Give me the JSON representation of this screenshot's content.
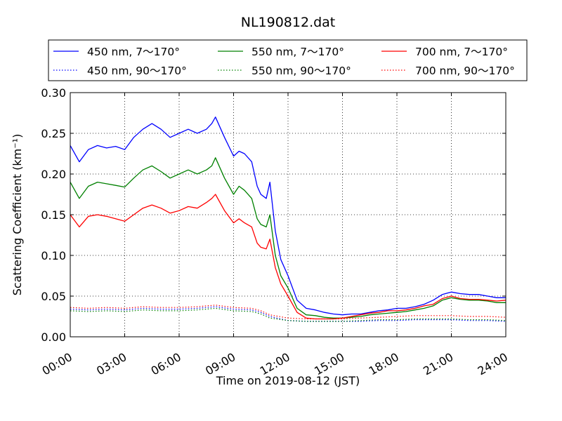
{
  "chart_data": {
    "type": "line",
    "title": "NL190812.dat",
    "xlabel": "Time on 2019-08-12 (JST)",
    "ylabel": "Scattering Coefficient (km⁻¹)",
    "xlim": [
      0,
      24
    ],
    "ylim": [
      0,
      0.3
    ],
    "x_ticks": [
      "00:00",
      "03:00",
      "06:00",
      "09:00",
      "12:00",
      "15:00",
      "18:00",
      "21:00",
      "24:00"
    ],
    "y_ticks": [
      "0.00",
      "0.05",
      "0.10",
      "0.15",
      "0.20",
      "0.25",
      "0.30"
    ],
    "grid": true,
    "legend_position": "top",
    "x_unit": "hours since 00:00",
    "series": [
      {
        "name": "450 nm, 7～170°",
        "color": "#0000ff",
        "style": "solid",
        "x": [
          0,
          0.5,
          1,
          1.5,
          2,
          2.5,
          3,
          3.5,
          4,
          4.5,
          5,
          5.5,
          6,
          6.5,
          7,
          7.5,
          7.8,
          8,
          8.5,
          9,
          9.3,
          9.6,
          10,
          10.3,
          10.5,
          10.8,
          11,
          11.3,
          11.6,
          12,
          12.5,
          13,
          13.5,
          14,
          14.5,
          15,
          15.5,
          16,
          16.5,
          17,
          17.5,
          18,
          18.5,
          19,
          19.5,
          20,
          20.5,
          21,
          21.5,
          22,
          22.5,
          23,
          23.5,
          24
        ],
        "y": [
          0.235,
          0.215,
          0.23,
          0.235,
          0.232,
          0.234,
          0.23,
          0.245,
          0.255,
          0.262,
          0.255,
          0.245,
          0.25,
          0.255,
          0.25,
          0.255,
          0.262,
          0.27,
          0.245,
          0.222,
          0.228,
          0.225,
          0.215,
          0.185,
          0.175,
          0.17,
          0.19,
          0.13,
          0.095,
          0.075,
          0.045,
          0.035,
          0.033,
          0.03,
          0.028,
          0.027,
          0.028,
          0.028,
          0.03,
          0.032,
          0.033,
          0.035,
          0.035,
          0.037,
          0.04,
          0.045,
          0.052,
          0.055,
          0.053,
          0.052,
          0.052,
          0.05,
          0.048,
          0.048
        ]
      },
      {
        "name": "450 nm, 90～170°",
        "color": "#0000ff",
        "style": "dotted",
        "x": [
          0,
          1,
          2,
          3,
          4,
          5,
          6,
          7,
          8,
          9,
          10,
          10.5,
          11,
          12,
          13,
          14,
          15,
          16,
          17,
          18,
          19,
          20,
          21,
          22,
          23,
          24
        ],
        "y": [
          0.034,
          0.033,
          0.034,
          0.033,
          0.035,
          0.034,
          0.034,
          0.035,
          0.037,
          0.034,
          0.033,
          0.03,
          0.025,
          0.02,
          0.019,
          0.019,
          0.019,
          0.019,
          0.02,
          0.02,
          0.021,
          0.021,
          0.021,
          0.02,
          0.02,
          0.019
        ]
      },
      {
        "name": "550 nm, 7～170°",
        "color": "#008000",
        "style": "solid",
        "x": [
          0,
          0.5,
          1,
          1.5,
          2,
          2.5,
          3,
          3.5,
          4,
          4.5,
          5,
          5.5,
          6,
          6.5,
          7,
          7.5,
          7.8,
          8,
          8.5,
          9,
          9.3,
          9.6,
          10,
          10.3,
          10.5,
          10.8,
          11,
          11.3,
          11.6,
          12,
          12.5,
          13,
          13.5,
          14,
          14.5,
          15,
          15.5,
          16,
          16.5,
          17,
          17.5,
          18,
          18.5,
          19,
          19.5,
          20,
          20.5,
          21,
          21.5,
          22,
          22.5,
          23,
          23.5,
          24
        ],
        "y": [
          0.19,
          0.17,
          0.185,
          0.19,
          0.188,
          0.186,
          0.184,
          0.195,
          0.205,
          0.21,
          0.203,
          0.195,
          0.2,
          0.205,
          0.2,
          0.205,
          0.21,
          0.22,
          0.195,
          0.175,
          0.185,
          0.18,
          0.17,
          0.145,
          0.138,
          0.135,
          0.15,
          0.1,
          0.075,
          0.06,
          0.035,
          0.027,
          0.026,
          0.024,
          0.023,
          0.023,
          0.024,
          0.025,
          0.027,
          0.028,
          0.029,
          0.03,
          0.031,
          0.033,
          0.035,
          0.038,
          0.045,
          0.048,
          0.046,
          0.045,
          0.045,
          0.044,
          0.042,
          0.042
        ]
      },
      {
        "name": "550 nm, 90～170°",
        "color": "#008000",
        "style": "dotted",
        "x": [
          0,
          1,
          2,
          3,
          4,
          5,
          6,
          7,
          8,
          9,
          10,
          10.5,
          11,
          12,
          13,
          14,
          15,
          16,
          17,
          18,
          19,
          20,
          21,
          22,
          23,
          24
        ],
        "y": [
          0.032,
          0.031,
          0.032,
          0.031,
          0.033,
          0.032,
          0.032,
          0.033,
          0.035,
          0.032,
          0.031,
          0.028,
          0.023,
          0.02,
          0.019,
          0.019,
          0.019,
          0.02,
          0.021,
          0.021,
          0.022,
          0.022,
          0.022,
          0.021,
          0.021,
          0.02
        ]
      },
      {
        "name": "700 nm, 7～170°",
        "color": "#ff0000",
        "style": "solid",
        "x": [
          0,
          0.5,
          1,
          1.5,
          2,
          2.5,
          3,
          3.5,
          4,
          4.5,
          5,
          5.5,
          6,
          6.5,
          7,
          7.5,
          7.8,
          8,
          8.5,
          9,
          9.3,
          9.6,
          10,
          10.3,
          10.5,
          10.8,
          11,
          11.3,
          11.6,
          12,
          12.5,
          13,
          13.5,
          14,
          14.5,
          15,
          15.5,
          16,
          16.5,
          17,
          17.5,
          18,
          18.5,
          19,
          19.5,
          20,
          20.5,
          21,
          21.5,
          22,
          22.5,
          23,
          23.5,
          24
        ],
        "y": [
          0.15,
          0.135,
          0.148,
          0.15,
          0.148,
          0.145,
          0.142,
          0.15,
          0.158,
          0.162,
          0.158,
          0.152,
          0.155,
          0.16,
          0.158,
          0.165,
          0.17,
          0.175,
          0.155,
          0.14,
          0.145,
          0.14,
          0.135,
          0.115,
          0.11,
          0.108,
          0.12,
          0.085,
          0.065,
          0.05,
          0.03,
          0.023,
          0.022,
          0.022,
          0.022,
          0.023,
          0.025,
          0.027,
          0.029,
          0.03,
          0.032,
          0.032,
          0.033,
          0.035,
          0.038,
          0.04,
          0.047,
          0.05,
          0.047,
          0.046,
          0.046,
          0.045,
          0.044,
          0.045
        ]
      },
      {
        "name": "700 nm, 90～170°",
        "color": "#ff0000",
        "style": "dotted",
        "x": [
          0,
          1,
          2,
          3,
          4,
          5,
          6,
          7,
          8,
          9,
          10,
          10.5,
          11,
          12,
          13,
          14,
          15,
          16,
          17,
          18,
          19,
          20,
          21,
          22,
          23,
          24
        ],
        "y": [
          0.036,
          0.035,
          0.036,
          0.035,
          0.037,
          0.036,
          0.036,
          0.037,
          0.039,
          0.036,
          0.035,
          0.032,
          0.027,
          0.023,
          0.022,
          0.022,
          0.022,
          0.023,
          0.024,
          0.025,
          0.026,
          0.026,
          0.026,
          0.025,
          0.025,
          0.024
        ]
      }
    ]
  }
}
